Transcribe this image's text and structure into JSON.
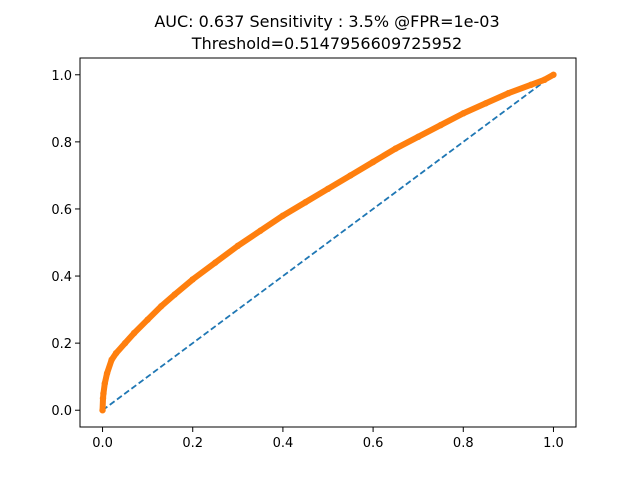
{
  "chart_data": {
    "type": "line",
    "title_line1": "AUC: 0.637   Sensitivity : 3.5%   @FPR=1e-03",
    "title_line2": "Threshold=0.5147956609725952",
    "xlabel": "",
    "ylabel": "",
    "xlim": [
      -0.05,
      1.05
    ],
    "ylim": [
      -0.05,
      1.05
    ],
    "x_ticks": [
      0.0,
      0.2,
      0.4,
      0.6,
      0.8,
      1.0
    ],
    "y_ticks": [
      0.0,
      0.2,
      0.4,
      0.6,
      0.8,
      1.0
    ],
    "x_tick_labels": [
      "0.0",
      "0.2",
      "0.4",
      "0.6",
      "0.8",
      "1.0"
    ],
    "y_tick_labels": [
      "0.0",
      "0.2",
      "0.4",
      "0.6",
      "0.8",
      "1.0"
    ],
    "grid": false,
    "series": [
      {
        "style": "dashed",
        "color": "#1f77b4",
        "x": [
          0.0,
          1.0
        ],
        "y": [
          0.0,
          1.0
        ]
      },
      {
        "style": "dots",
        "color": "#ff7f0e",
        "x": [
          0.0,
          0.001,
          0.002,
          0.005,
          0.01,
          0.02,
          0.03,
          0.05,
          0.07,
          0.1,
          0.13,
          0.16,
          0.2,
          0.25,
          0.3,
          0.35,
          0.4,
          0.45,
          0.5,
          0.55,
          0.6,
          0.65,
          0.7,
          0.75,
          0.8,
          0.85,
          0.9,
          0.95,
          0.98,
          1.0
        ],
        "y": [
          0.0,
          0.035,
          0.05,
          0.08,
          0.11,
          0.15,
          0.17,
          0.2,
          0.23,
          0.27,
          0.31,
          0.345,
          0.39,
          0.44,
          0.49,
          0.535,
          0.58,
          0.62,
          0.66,
          0.7,
          0.74,
          0.78,
          0.815,
          0.85,
          0.885,
          0.915,
          0.945,
          0.97,
          0.985,
          1.0
        ]
      }
    ]
  }
}
